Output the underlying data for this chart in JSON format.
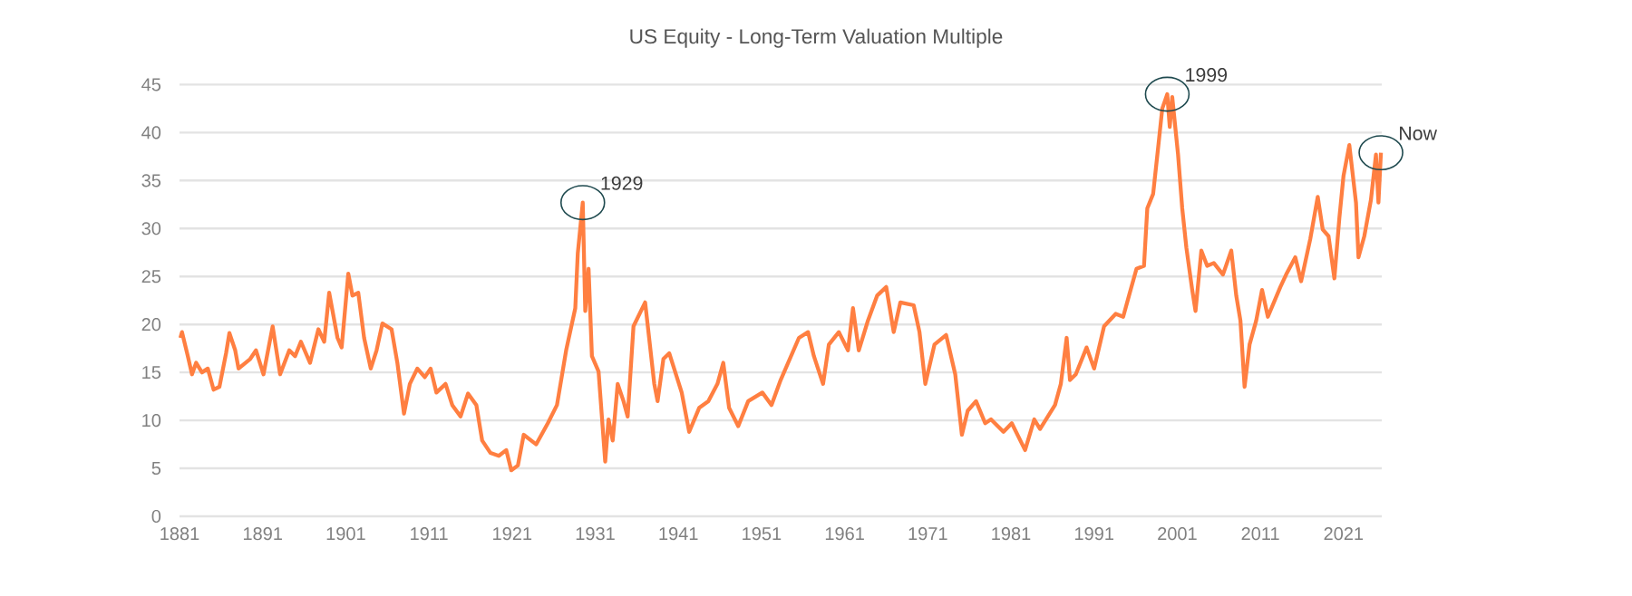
{
  "chart_data": {
    "type": "line",
    "title": "US Equity - Long-Term Valuation Multiple",
    "xlim": [
      1881,
      2025.6
    ],
    "ylim": [
      0,
      45
    ],
    "xticks": [
      1881,
      1891,
      1901,
      1911,
      1921,
      1931,
      1941,
      1951,
      1961,
      1971,
      1981,
      1991,
      2001,
      2011,
      2021
    ],
    "yticks": [
      0,
      5,
      10,
      15,
      20,
      25,
      30,
      35,
      40,
      45
    ],
    "grid": "y",
    "marker": "none",
    "line_style": "solid",
    "series": [
      {
        "color": "#ff7f41",
        "x": [
          1881.1,
          1881.3,
          1882.0,
          1882.5,
          1883.0,
          1883.7,
          1884.4,
          1885.1,
          1885.8,
          1886.6,
          1887.0,
          1887.7,
          1888.1,
          1889.5,
          1890.2,
          1891.1,
          1892.2,
          1893.1,
          1894.2,
          1894.9,
          1895.6,
          1896.7,
          1897.7,
          1898.4,
          1899.0,
          1900.0,
          1900.5,
          1901.3,
          1901.8,
          1902.5,
          1903.2,
          1904.0,
          1904.7,
          1905.4,
          1906.5,
          1907.2,
          1908.0,
          1908.7,
          1909.6,
          1910.5,
          1911.2,
          1911.9,
          1913.0,
          1913.8,
          1914.8,
          1915.7,
          1916.7,
          1917.4,
          1918.4,
          1919.4,
          1920.3,
          1920.9,
          1921.7,
          1922.4,
          1923.9,
          1925.3,
          1926.4,
          1927.5,
          1928.6,
          1928.9,
          1929.5,
          1929.8,
          1930.2,
          1930.6,
          1931.4,
          1932.2,
          1932.6,
          1933.1,
          1933.7,
          1934.4,
          1934.9,
          1935.6,
          1937.0,
          1938.1,
          1938.5,
          1939.2,
          1939.9,
          1940.6,
          1941.4,
          1942.3,
          1943.5,
          1944.6,
          1945.7,
          1946.4,
          1947.1,
          1948.2,
          1949.4,
          1951.1,
          1952.2,
          1953.3,
          1955.5,
          1956.6,
          1957.3,
          1958.4,
          1959.1,
          1960.3,
          1961.4,
          1962.0,
          1962.7,
          1963.8,
          1964.9,
          1966.0,
          1966.9,
          1967.7,
          1969.3,
          1970.0,
          1970.7,
          1971.8,
          1973.2,
          1974.3,
          1975.1,
          1975.8,
          1976.8,
          1977.9,
          1978.6,
          1980.1,
          1981.1,
          1982.7,
          1983.8,
          1984.5,
          1986.3,
          1987.0,
          1987.7,
          1988.1,
          1988.8,
          1990.1,
          1991.0,
          1992.2,
          1993.6,
          1994.5,
          1995.2,
          1996.1,
          1997.0,
          1997.4,
          1998.1,
          1998.7,
          1999.2,
          1999.8,
          2000.1,
          2000.4,
          2001.1,
          2001.6,
          2002.1,
          2002.8,
          2003.2,
          2003.9,
          2004.6,
          2005.4,
          2006.5,
          2007.5,
          2008.1,
          2008.6,
          2009.1,
          2009.7,
          2010.5,
          2011.2,
          2011.9,
          2013.4,
          2014.1,
          2015.2,
          2015.9,
          2017.0,
          2017.9,
          2018.5,
          2019.2,
          2019.9,
          2020.5,
          2021.0,
          2021.7,
          2022.5,
          2022.8,
          2023.5,
          2024.3,
          2024.9,
          2025.2,
          2025.5
        ],
        "values": [
          18.6,
          19.2,
          16.7,
          14.8,
          16.0,
          15.0,
          15.4,
          13.2,
          13.5,
          17.0,
          19.1,
          17.3,
          15.4,
          16.4,
          17.3,
          14.8,
          19.8,
          14.8,
          17.3,
          16.7,
          18.2,
          16.0,
          19.5,
          18.2,
          23.3,
          18.6,
          17.6,
          25.3,
          23.0,
          23.3,
          18.6,
          15.4,
          17.3,
          20.1,
          19.5,
          16.0,
          10.7,
          13.8,
          15.4,
          14.5,
          15.4,
          12.9,
          13.8,
          11.6,
          10.4,
          12.8,
          11.6,
          7.9,
          6.6,
          6.3,
          6.9,
          4.8,
          5.3,
          8.5,
          7.5,
          9.7,
          11.6,
          17.3,
          21.7,
          27.4,
          32.7,
          21.4,
          25.8,
          16.7,
          15.1,
          5.7,
          10.1,
          7.9,
          13.8,
          12.0,
          10.4,
          19.8,
          22.3,
          13.8,
          12.0,
          16.4,
          17.0,
          15.1,
          12.9,
          8.8,
          11.3,
          12.0,
          13.8,
          16.0,
          11.3,
          9.4,
          12.0,
          12.9,
          11.6,
          14.2,
          18.6,
          19.2,
          16.7,
          13.8,
          17.9,
          19.2,
          17.3,
          21.7,
          17.3,
          20.4,
          23.0,
          23.9,
          19.2,
          22.3,
          22.0,
          19.2,
          13.8,
          17.9,
          18.9,
          14.8,
          8.5,
          11.0,
          12.0,
          9.7,
          10.1,
          8.8,
          9.7,
          6.9,
          10.1,
          9.1,
          11.6,
          13.8,
          18.6,
          14.2,
          14.8,
          17.6,
          15.4,
          19.8,
          21.1,
          20.8,
          23.0,
          25.8,
          26.1,
          32.1,
          33.6,
          38.4,
          42.5,
          44.0,
          40.6,
          43.7,
          37.7,
          32.1,
          28.0,
          23.6,
          21.4,
          27.7,
          26.1,
          26.4,
          25.2,
          27.7,
          23.0,
          20.4,
          13.5,
          17.9,
          20.4,
          23.6,
          20.8,
          23.9,
          25.2,
          27.0,
          24.5,
          28.9,
          33.3,
          29.9,
          29.2,
          24.8,
          31.1,
          35.5,
          38.7,
          32.7,
          27.0,
          29.2,
          33.0,
          37.7,
          32.7,
          37.9
        ]
      }
    ],
    "annotations": [
      {
        "text": "1929",
        "x": 1929.5,
        "y": 32.7
      },
      {
        "text": "1999",
        "x": 1999.8,
        "y": 44.0
      },
      {
        "text": "Now",
        "x": 2025.5,
        "y": 37.9
      }
    ]
  }
}
